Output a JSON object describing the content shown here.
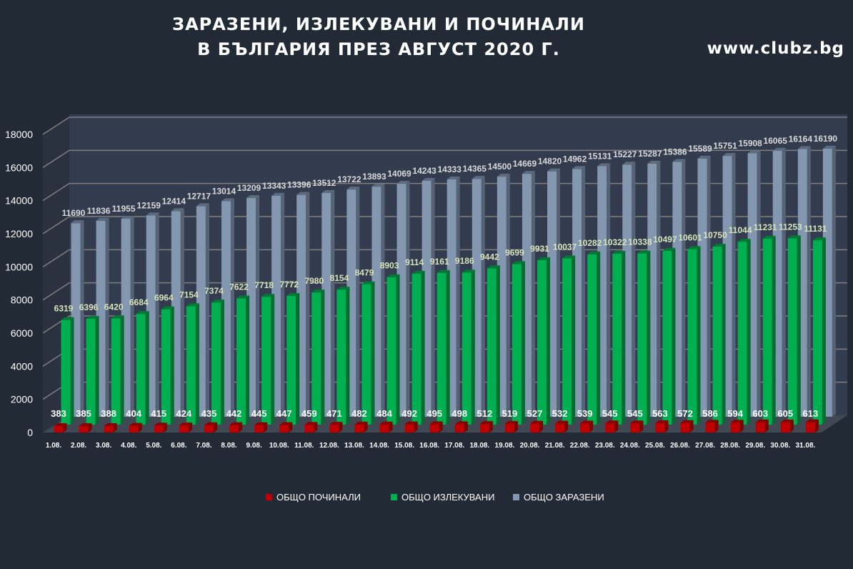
{
  "title_line1": "ЗАРАЗЕНИ, ИЗЛЕКУВАНИ И ПОЧИНАЛИ",
  "title_line2": "В БЪЛГАРИЯ ПРЕЗ АВГУСТ 2020 Г.",
  "site": "www.clubz.bg",
  "chart_data": {
    "type": "bar",
    "title": "ЗАРАЗЕНИ, ИЗЛЕКУВАНИ И ПОЧИНАЛИ В БЪЛГАРИЯ ПРЕЗ АВГУСТ 2020 Г.",
    "categories": [
      "1.08.",
      "2.08.",
      "3.08.",
      "4.08.",
      "5.08.",
      "6.08.",
      "7.08.",
      "8.08.",
      "9.08.",
      "10.08.",
      "11.08.",
      "12.08.",
      "13.08.",
      "14.08.",
      "15.08.",
      "16.08.",
      "17.08.",
      "18.08.",
      "19.08.",
      "20.08.",
      "21.08.",
      "22.08.",
      "23.08.",
      "24.08.",
      "25.08.",
      "26.08.",
      "27.08.",
      "28.08.",
      "29.08.",
      "30.08.",
      "31.08."
    ],
    "yticks": [
      "0",
      "2000",
      "4000",
      "6000",
      "8000",
      "10000",
      "12000",
      "14000",
      "16000",
      "18000"
    ],
    "ylim": [
      0,
      18000
    ],
    "legend_position": "bottom",
    "series": [
      {
        "name": "ОБЩО ПОЧИНАЛИ",
        "color": "#c00000",
        "values": [
          383,
          385,
          388,
          404,
          415,
          424,
          435,
          442,
          445,
          447,
          459,
          471,
          482,
          484,
          492,
          495,
          498,
          512,
          519,
          527,
          532,
          539,
          545,
          545,
          563,
          572,
          586,
          594,
          603,
          605,
          613
        ]
      },
      {
        "name": "ОБЩО ИЗЛЕКУВАНИ",
        "color": "#00b050",
        "values": [
          6319,
          6396,
          6420,
          6684,
          6964,
          7154,
          7374,
          7622,
          7718,
          7772,
          7980,
          8154,
          8479,
          8903,
          9114,
          9161,
          9186,
          9442,
          9699,
          9931,
          10037,
          10282,
          10322,
          10338,
          10497,
          10601,
          10750,
          11044,
          11231,
          11253,
          11131
        ]
      },
      {
        "name": "ОБЩО ЗАРАЗЕНИ",
        "color": "#8497b0",
        "values": [
          11690,
          11836,
          11955,
          12159,
          12414,
          12717,
          13014,
          13209,
          13343,
          13396,
          13512,
          13722,
          13893,
          14069,
          14243,
          14333,
          14365,
          14500,
          14669,
          14820,
          14962,
          15131,
          15227,
          15287,
          15386,
          15589,
          15751,
          15908,
          16065,
          16164,
          16190
        ]
      }
    ]
  }
}
